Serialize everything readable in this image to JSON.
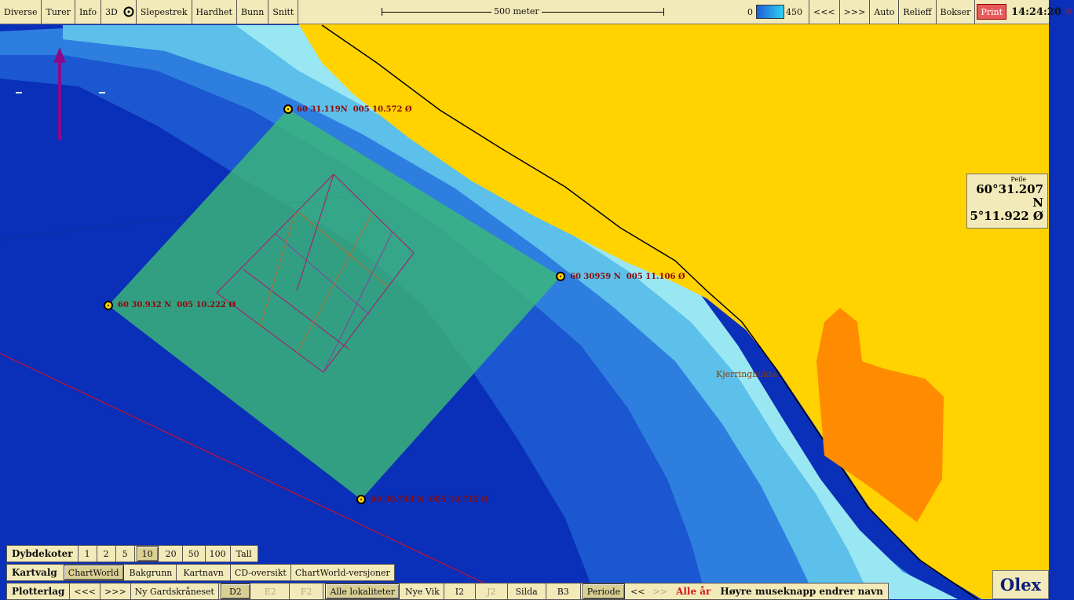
{
  "topbar": {
    "menu": [
      "Diverse",
      "Turer",
      "Info",
      "3D"
    ],
    "tools": [
      "Slepestrek",
      "Hardhet",
      "Bunn",
      "Snitt"
    ],
    "scale_label": "500 meter",
    "depth_min": "0",
    "depth_max": "450",
    "nav_prev": "<<<",
    "nav_next": ">>>",
    "right_buttons": [
      "Auto",
      "Relieff",
      "Bokser"
    ],
    "print": "Print",
    "clock": "14:24:20"
  },
  "map": {
    "points": [
      {
        "lat": "60 31.119N",
        "lon": "005 10.572 Ø"
      },
      {
        "lat": "60 30959 N",
        "lon": "005 11.106 Ø"
      },
      {
        "lat": "60 30.932 N",
        "lon": "005 10.222 Ø"
      },
      {
        "lat": "60 30.744 N",
        "lon": "005 10.715 Ø"
      }
    ],
    "place_name": "Kjerringbukta",
    "sea_color": "#0a2fb8",
    "land_color": "#ffd200",
    "area_color": "#3cb878",
    "orange_area_color": "#ff8c00"
  },
  "peile": {
    "title": "Peile",
    "lat": "60°31.207 N",
    "lon": "5°11.922 Ø"
  },
  "dybdekoter": {
    "label": "Dybdekoter",
    "values": [
      "1",
      "2",
      "5",
      "10",
      "20",
      "50",
      "100",
      "Tall"
    ],
    "active": "10"
  },
  "kartvalg": {
    "label": "Kartvalg",
    "items": [
      "ChartWorld",
      "Bakgrunn",
      "Kartnavn",
      "CD-oversikt",
      "ChartWorld-versjoner"
    ],
    "active": "ChartWorld"
  },
  "plotterlag": {
    "label": "Plotterlag",
    "prev": "<<<",
    "next": ">>>",
    "items": [
      "Ny Gardskråneset",
      "D2",
      "E2",
      "F2",
      "Alle lokaliteter",
      "Nye Vik",
      "I2",
      "J2",
      "Silda",
      "B3",
      "Periode",
      "<<",
      ">>"
    ],
    "alle_ar": "Alle år",
    "hint": "Høyre museknapp endrer navn"
  },
  "brand": "Olex"
}
